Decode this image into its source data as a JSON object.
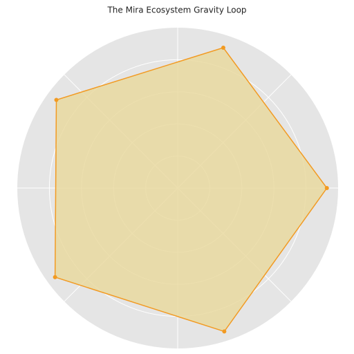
{
  "chart_data": {
    "type": "radar",
    "title": "The Mira Ecosystem Gravity Loop",
    "categories": [
      null,
      null,
      null,
      null,
      null
    ],
    "values": [
      0.93,
      0.92,
      0.935,
      0.945,
      0.94
    ],
    "color": "#f29a22",
    "fill_color": "#e9d9a0",
    "ylim": [
      0,
      1
    ],
    "yticks": [
      0.2,
      0.4,
      0.6,
      0.8
    ],
    "xticks": [
      0,
      45,
      90,
      135,
      180,
      225,
      270,
      315
    ],
    "grid": true
  }
}
